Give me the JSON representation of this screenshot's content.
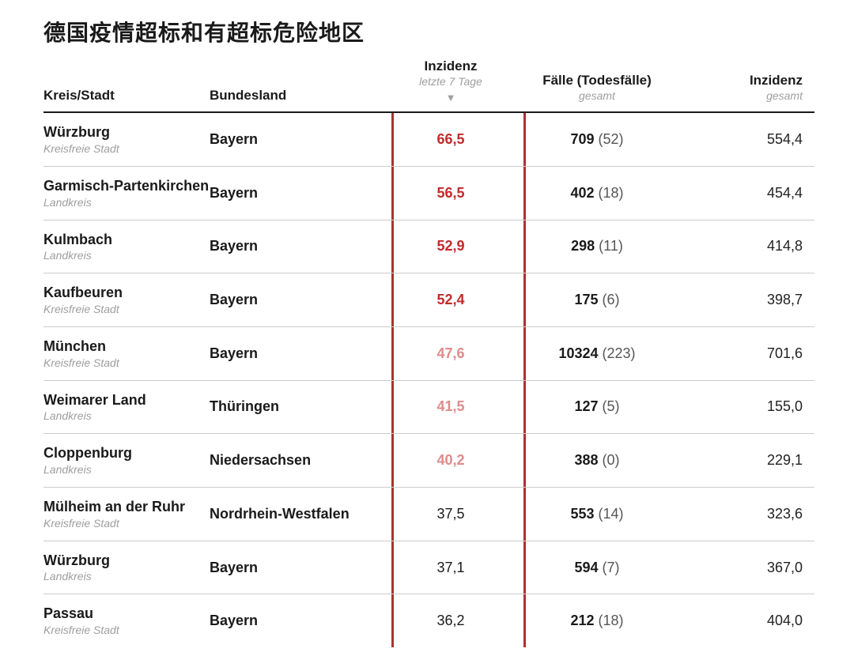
{
  "title": "德国疫情超标和有超标危险地区",
  "headers": {
    "col1": "Kreis/Stadt",
    "col2": "Bundesland",
    "col3_main": "Inzidenz",
    "col3_sub": "letzte 7 Tage",
    "col4_main": "Fälle (Todesfälle)",
    "col4_sub": "gesamt",
    "col5_main": "Inzidenz",
    "col5_sub": "gesamt"
  },
  "colors": {
    "red_strong": "#c22a2a",
    "red_light": "#e08a8a",
    "divider": "#999999",
    "red_bar": "#b03030"
  },
  "rows": [
    {
      "kreis": "Würzburg",
      "type": "Kreisfreie Stadt",
      "land": "Bayern",
      "inz7": "66,5",
      "inz7_level": "strong",
      "cases": "709",
      "deaths": "(52)",
      "inz_total": "554,4"
    },
    {
      "kreis": "Garmisch-Partenkirchen",
      "type": "Landkreis",
      "land": "Bayern",
      "inz7": "56,5",
      "inz7_level": "strong",
      "cases": "402",
      "deaths": "(18)",
      "inz_total": "454,4"
    },
    {
      "kreis": "Kulmbach",
      "type": "Landkreis",
      "land": "Bayern",
      "inz7": "52,9",
      "inz7_level": "strong",
      "cases": "298",
      "deaths": "(11)",
      "inz_total": "414,8"
    },
    {
      "kreis": "Kaufbeuren",
      "type": "Kreisfreie Stadt",
      "land": "Bayern",
      "inz7": "52,4",
      "inz7_level": "strong",
      "cases": "175",
      "deaths": "(6)",
      "inz_total": "398,7"
    },
    {
      "kreis": "München",
      "type": "Kreisfreie Stadt",
      "land": "Bayern",
      "inz7": "47,6",
      "inz7_level": "light",
      "cases": "10324",
      "deaths": "(223)",
      "inz_total": "701,6"
    },
    {
      "kreis": "Weimarer Land",
      "type": "Landkreis",
      "land": "Thüringen",
      "inz7": "41,5",
      "inz7_level": "light",
      "cases": "127",
      "deaths": "(5)",
      "inz_total": "155,0"
    },
    {
      "kreis": "Cloppenburg",
      "type": "Landkreis",
      "land": "Niedersachsen",
      "inz7": "40,2",
      "inz7_level": "light",
      "cases": "388",
      "deaths": "(0)",
      "inz_total": "229,1"
    },
    {
      "kreis": "Mülheim an der Ruhr",
      "type": "Kreisfreie Stadt",
      "land": "Nordrhein-Westfalen",
      "inz7": "37,5",
      "inz7_level": "normal",
      "cases": "553",
      "deaths": "(14)",
      "inz_total": "323,6"
    },
    {
      "kreis": "Würzburg",
      "type": "Landkreis",
      "land": "Bayern",
      "inz7": "37,1",
      "inz7_level": "normal",
      "cases": "594",
      "deaths": "(7)",
      "inz_total": "367,0"
    },
    {
      "kreis": "Passau",
      "type": "Kreisfreie Stadt",
      "land": "Bayern",
      "inz7": "36,2",
      "inz7_level": "normal",
      "cases": "212",
      "deaths": "(18)",
      "inz_total": "404,0"
    }
  ]
}
